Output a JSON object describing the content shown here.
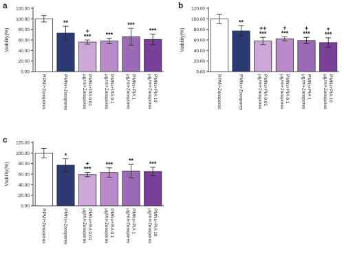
{
  "chart_data": [
    {
      "type": "bar",
      "panel_label": "a",
      "ylabel": "Viability(%)",
      "categories": [
        "RPMI+Zoospores",
        "PMNs+Zoospores",
        "PMNs+PIA 0.01 μg/ml+Zoospores",
        "PMNs+PIA 0.1 μg/ml+Zoospores",
        "PMNs+PIA 1 μg/ml+Zoospores",
        "PMNs+PIA 10 μg/ml+Zoospores"
      ],
      "values": [
        100,
        73,
        56,
        58,
        66,
        61
      ],
      "errors": [
        6,
        13,
        4,
        5,
        16,
        10
      ],
      "annotations": [
        [],
        [
          "**"
        ],
        [
          "+",
          "***"
        ],
        [
          "***"
        ],
        [
          "***"
        ],
        [
          "***"
        ]
      ],
      "colors": [
        "#ffffff",
        "#2b3a73",
        "#cba8d8",
        "#b98ac9",
        "#9a6ab6",
        "#7a3f98"
      ],
      "ylim": [
        0,
        120
      ],
      "yticks": [
        {
          "value": 0,
          "label": "0.00"
        },
        {
          "value": 20,
          "label": "20.00"
        },
        {
          "value": 40,
          "label": "40.00"
        },
        {
          "value": 60,
          "label": "60.00"
        },
        {
          "value": 80,
          "label": "80.00"
        },
        {
          "value": 100,
          "label": "100.00"
        },
        {
          "value": 120,
          "label": "120.00"
        }
      ]
    },
    {
      "type": "bar",
      "panel_label": "b",
      "ylabel": "Viability(%)",
      "categories": [
        "RPMI+Zoospores",
        "PMNs+Zoospores",
        "PMNs+PIA 0.01 μg/ml+Zoospores",
        "PMNs+PIA 0.1 μg/ml+Zoospores",
        "PMNs+PIA 1 μg/ml+Zoospores",
        "PMNs+PIA 10 μg/ml+Zoospores"
      ],
      "values": [
        100,
        77,
        58,
        62,
        59,
        55
      ],
      "errors": [
        9,
        10,
        7,
        4,
        6,
        9
      ],
      "annotations": [
        [],
        [
          "**"
        ],
        [
          "++",
          "***"
        ],
        [
          "+",
          "***"
        ],
        [
          "+",
          "***"
        ],
        [
          "+",
          "***"
        ]
      ],
      "colors": [
        "#ffffff",
        "#2b3a73",
        "#cba8d8",
        "#b98ac9",
        "#9a6ab6",
        "#7a3f98"
      ],
      "ylim": [
        0,
        120
      ],
      "yticks": [
        {
          "value": 0,
          "label": "0.00"
        },
        {
          "value": 20,
          "label": "20.00"
        },
        {
          "value": 40,
          "label": "40.00"
        },
        {
          "value": 60,
          "label": "60.00"
        },
        {
          "value": 80,
          "label": "80.00"
        },
        {
          "value": 100,
          "label": "100.00"
        },
        {
          "value": 120,
          "label": "120.00"
        }
      ]
    },
    {
      "type": "bar",
      "panel_label": "c",
      "ylabel": "Viability(%)",
      "categories": [
        "RPMI+Zoospores",
        "PMNs+Zoospores",
        "PMNs+PIA 0.01 μg/ml+Zoospores",
        "PMNs+PIA 0.1 μg/ml+Zoospores",
        "PMNs+PIA 1 μg/ml+Zoospores",
        "PMNs+PIA 10 μg/ml+Zoospores"
      ],
      "values": [
        100,
        77,
        59,
        63,
        66,
        65
      ],
      "errors": [
        9,
        12,
        4,
        9,
        13,
        8
      ],
      "annotations": [
        [],
        [
          "*"
        ],
        [
          "+",
          "***"
        ],
        [
          "***"
        ],
        [
          "**"
        ],
        [
          "***"
        ]
      ],
      "colors": [
        "#ffffff",
        "#2b3a73",
        "#cba8d8",
        "#b98ac9",
        "#9a6ab6",
        "#7a3f98"
      ],
      "ylim": [
        0,
        120
      ],
      "yticks": [
        {
          "value": 0,
          "label": "0.00"
        },
        {
          "value": 20,
          "label": "20.00"
        },
        {
          "value": 40,
          "label": "40.00"
        },
        {
          "value": 60,
          "label": "60.00"
        },
        {
          "value": 80,
          "label": "80.00"
        },
        {
          "value": 100,
          "label": "100.00"
        },
        {
          "value": 120,
          "label": "120.00"
        }
      ]
    }
  ]
}
